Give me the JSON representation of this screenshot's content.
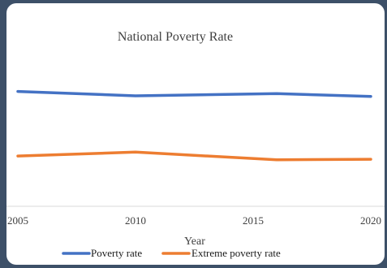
{
  "chart_data": {
    "type": "line",
    "title": "National Poverty Rate",
    "xlabel": "Year",
    "ylabel": "",
    "x": [
      2005,
      2010,
      2016,
      2020
    ],
    "x_ticks": [
      "2005",
      "2010",
      "2015",
      "2020"
    ],
    "x_tick_values": [
      2005,
      2010,
      2015,
      2020
    ],
    "xlim": [
      2005,
      2020
    ],
    "y_axis_visible": false,
    "ylim": [
      0,
      30
    ],
    "grid": false,
    "legend_position": "bottom",
    "series": [
      {
        "name": "Poverty rate",
        "color": "#4472C4",
        "values": [
          21,
          20.2,
          20.6,
          20.1
        ]
      },
      {
        "name": "Extreme poverty rate",
        "color": "#ED7D31",
        "values": [
          9.2,
          9.9,
          8.5,
          8.6
        ]
      }
    ]
  }
}
